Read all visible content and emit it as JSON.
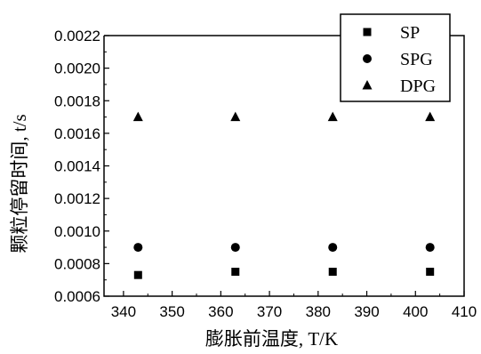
{
  "chart_data": {
    "type": "scatter",
    "xlabel": "膨胀前温度, T/K",
    "ylabel": "颗粒停留时间, t/s",
    "xlim": [
      336,
      410
    ],
    "ylim": [
      0.0006,
      0.0022
    ],
    "xticks": [
      "340",
      "350",
      "360",
      "370",
      "380",
      "390",
      "400",
      "410"
    ],
    "yticks": [
      "0.0006",
      "0.0008",
      "0.0010",
      "0.0012",
      "0.0014",
      "0.0016",
      "0.0018",
      "0.0020",
      "0.0022"
    ],
    "grid": false,
    "legend_position": "top-right",
    "series": [
      {
        "name": "SP",
        "marker": "square",
        "color": "#000000",
        "x": [
          343,
          363,
          383,
          403
        ],
        "y": [
          0.00073,
          0.00075,
          0.00075,
          0.00075
        ]
      },
      {
        "name": "SPG",
        "marker": "circle",
        "color": "#000000",
        "x": [
          343,
          363,
          383,
          403
        ],
        "y": [
          0.0009,
          0.0009,
          0.0009,
          0.0009
        ]
      },
      {
        "name": "DPG",
        "marker": "triangle",
        "color": "#000000",
        "x": [
          343,
          363,
          383,
          403
        ],
        "y": [
          0.0017,
          0.0017,
          0.0017,
          0.0017
        ]
      }
    ]
  }
}
